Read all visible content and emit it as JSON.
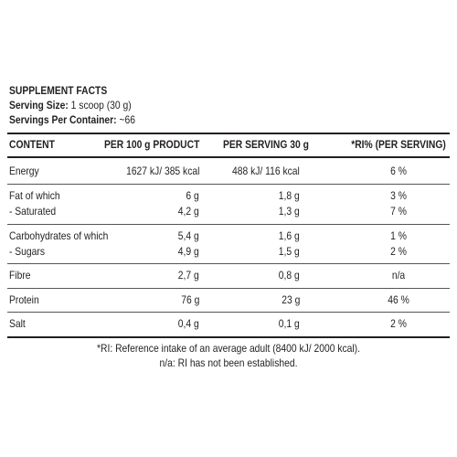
{
  "title": "SUPPLEMENT FACTS",
  "serving_size_label": "Serving Size:",
  "serving_size_value": "1 scoop (30 g)",
  "servings_label": "Servings Per Container:",
  "servings_value": "~66",
  "columns": [
    "CONTENT",
    "PER 100 g PRODUCT",
    "PER SERVING 30 g",
    "*RI% (PER SERVING)"
  ],
  "rows": [
    {
      "name": "Energy",
      "per100": "1627 kJ/ 385 kcal",
      "serving": "488 kJ/ 116 kcal",
      "ri": "6 %"
    },
    {
      "name": "Fat of which",
      "per100": "6 g",
      "serving": "1,8 g",
      "ri": "3 %"
    },
    {
      "name": "- Saturated",
      "per100": "4,2 g",
      "serving": "1,3 g",
      "ri": "7 %"
    },
    {
      "name": "Carbohydrates of which",
      "per100": "5,4 g",
      "serving": "1,6 g",
      "ri": "1 %"
    },
    {
      "name": "- Sugars",
      "per100": "4,9 g",
      "serving": "1,5 g",
      "ri": "2 %"
    },
    {
      "name": "Fibre",
      "per100": "2,7 g",
      "serving": "0,8 g",
      "ri": "n/a"
    },
    {
      "name": "Protein",
      "per100": "76 g",
      "serving": "23 g",
      "ri": "46 %"
    },
    {
      "name": "Salt",
      "per100": "0,4 g",
      "serving": "0,1 g",
      "ri": "2 %"
    }
  ],
  "footnotes": [
    "*RI: Reference intake of an average adult (8400 kJ/ 2000 kcal).",
    "n/a: RI has not been established."
  ]
}
